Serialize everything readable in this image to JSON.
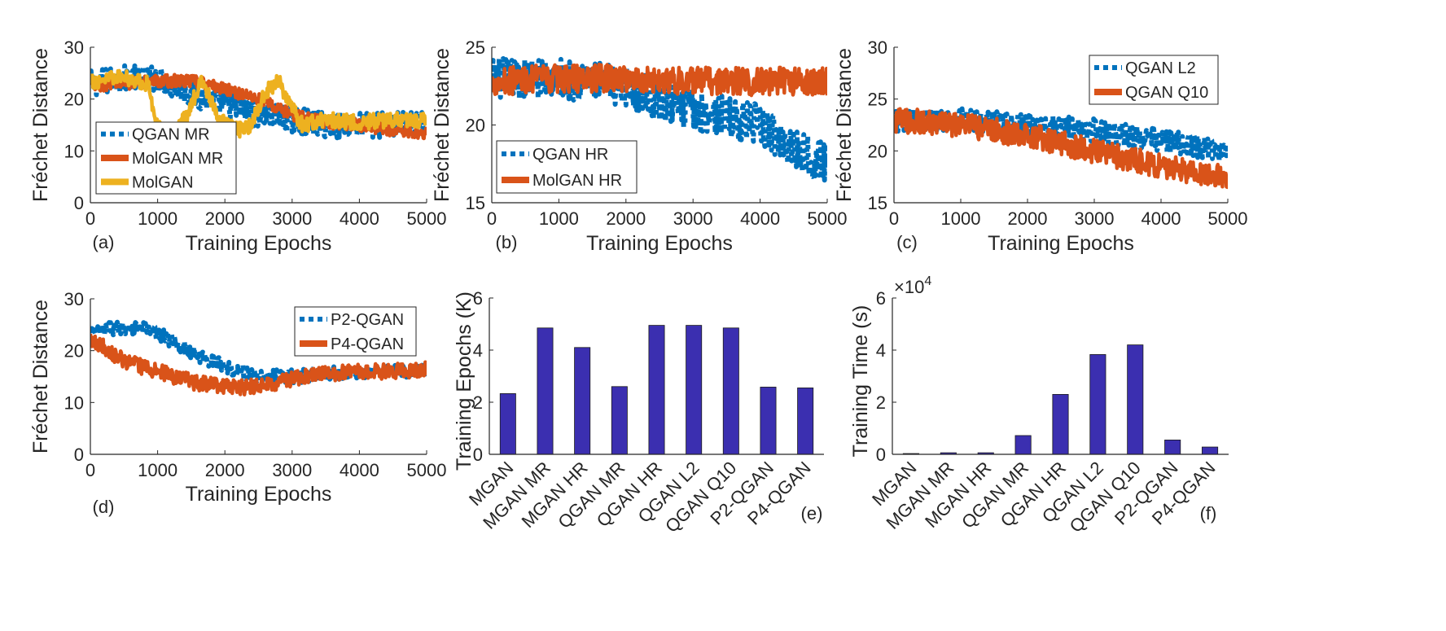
{
  "chart_data": [
    {
      "panel": "(a)",
      "type": "line",
      "xlabel": "Training Epochs",
      "ylabel": "Fréchet Distance",
      "xlim": [
        0,
        5000
      ],
      "ylim": [
        0,
        30
      ],
      "xticks": [
        0,
        1000,
        2000,
        3000,
        4000,
        5000
      ],
      "yticks": [
        0,
        10,
        20,
        30
      ],
      "legend": "middle-left",
      "series": [
        {
          "name": "QGAN MR",
          "color": "#0072BD",
          "style": "dotted",
          "x": [
            0,
            500,
            1000,
            1500,
            2000,
            2500,
            3000,
            3500,
            4000,
            4500,
            5000
          ],
          "y": [
            23,
            24,
            24,
            21,
            19,
            17,
            16,
            15,
            15,
            15,
            15
          ],
          "noise": 2.5
        },
        {
          "name": "MolGAN MR",
          "color": "#D95319",
          "style": "solid",
          "x": [
            0,
            500,
            1000,
            1500,
            2000,
            2500,
            3000,
            3500,
            4000,
            4500,
            5000
          ],
          "y": [
            22.5,
            23,
            23.5,
            23.5,
            22,
            20,
            17,
            15.5,
            15,
            14,
            13.5
          ],
          "noise": 1.2
        },
        {
          "name": "MolGAN",
          "color": "#EDB120",
          "style": "solid",
          "x": [
            0,
            300,
            600,
            850,
            1000,
            1200,
            1450,
            1650,
            1900,
            2150,
            2350,
            2600,
            2800,
            2950,
            3150,
            3500,
            4000,
            4500,
            5000
          ],
          "y": [
            23,
            24.5,
            24,
            23,
            15,
            13,
            17,
            24,
            16,
            14,
            14.5,
            21,
            24,
            19,
            15,
            16,
            15.5,
            16,
            16
          ],
          "noise": 1.5
        }
      ]
    },
    {
      "panel": "(b)",
      "type": "line",
      "xlabel": "Training Epochs",
      "ylabel": "Fréchet Distance",
      "xlim": [
        0,
        5000
      ],
      "ylim": [
        15,
        25
      ],
      "xticks": [
        0,
        1000,
        2000,
        3000,
        4000,
        5000
      ],
      "yticks": [
        15,
        20,
        25
      ],
      "legend": "bottom-left",
      "series": [
        {
          "name": "QGAN HR",
          "color": "#0072BD",
          "style": "dotted",
          "x": [
            0,
            1000,
            2000,
            2500,
            3000,
            3500,
            4000,
            4500,
            5000
          ],
          "y": [
            23,
            23,
            22.5,
            21.5,
            21,
            20.5,
            20,
            18.5,
            17.5
          ],
          "noise": 1.3
        },
        {
          "name": "MolGAN HR",
          "color": "#D95319",
          "style": "solid",
          "x": [
            0,
            1000,
            2000,
            3000,
            4000,
            5000
          ],
          "y": [
            22.8,
            23,
            23,
            22.8,
            22.8,
            22.8
          ],
          "noise": 0.9
        }
      ]
    },
    {
      "panel": "(c)",
      "type": "line",
      "xlabel": "Training Epochs",
      "ylabel": "Fréchet Distance",
      "xlim": [
        0,
        5000
      ],
      "ylim": [
        15,
        30
      ],
      "xticks": [
        0,
        1000,
        2000,
        3000,
        4000,
        5000
      ],
      "yticks": [
        15,
        20,
        25,
        30
      ],
      "legend": "top-right",
      "series": [
        {
          "name": "QGAN L2",
          "color": "#0072BD",
          "style": "dotted",
          "x": [
            0,
            1000,
            2000,
            3000,
            4000,
            5000
          ],
          "y": [
            23,
            23,
            22.5,
            22,
            21,
            20
          ],
          "noise": 1.1
        },
        {
          "name": "QGAN Q10",
          "color": "#D95319",
          "style": "solid",
          "x": [
            0,
            1000,
            2000,
            3000,
            4000,
            5000
          ],
          "y": [
            23,
            22.5,
            21.5,
            20,
            18.5,
            17.5
          ],
          "noise": 1.2
        }
      ]
    },
    {
      "panel": "(d)",
      "type": "line",
      "xlabel": "Training Epochs",
      "ylabel": "Fréchet Distance",
      "xlim": [
        0,
        5000
      ],
      "ylim": [
        0,
        30
      ],
      "xticks": [
        0,
        1000,
        2000,
        3000,
        4000,
        5000
      ],
      "yticks": [
        0,
        10,
        20,
        30
      ],
      "legend": "top-right",
      "series": [
        {
          "name": "P2-QGAN",
          "color": "#0072BD",
          "style": "dotted",
          "x": [
            0,
            400,
            800,
            1200,
            1600,
            2000,
            2500,
            3000,
            3500,
            4000,
            4500,
            5000
          ],
          "y": [
            23.5,
            24.5,
            24.5,
            22,
            19,
            17,
            15,
            15,
            15.5,
            16,
            16,
            16
          ],
          "noise": 1.3
        },
        {
          "name": "P4-QGAN",
          "color": "#D95319",
          "style": "solid",
          "x": [
            0,
            500,
            1000,
            1500,
            2000,
            2500,
            3000,
            3500,
            4000,
            4500,
            5000
          ],
          "y": [
            22.5,
            18,
            16,
            14,
            13,
            13,
            14.5,
            15.5,
            16,
            16,
            16.5
          ],
          "noise": 1.5
        }
      ]
    },
    {
      "panel": "(e)",
      "type": "bar",
      "ylabel": "Training Epochs (K)",
      "ylim": [
        0,
        6
      ],
      "yticks": [
        0,
        2,
        4,
        6
      ],
      "bar_color": "#3B2FB0",
      "categories": [
        "MGAN",
        "MGAN MR",
        "MGAN HR",
        "QGAN MR",
        "QGAN HR",
        "QGAN L2",
        "QGAN Q10",
        "P2-QGAN",
        "P4-QGAN"
      ],
      "values": [
        2.33,
        4.85,
        4.1,
        2.6,
        4.95,
        4.95,
        4.85,
        2.58,
        2.55
      ]
    },
    {
      "panel": "(f)",
      "type": "bar",
      "ylabel": "Training Time (s)",
      "multiplier": "×10",
      "multiplier_exp": "4",
      "ylim": [
        0,
        6
      ],
      "yticks": [
        0,
        2,
        4,
        6
      ],
      "bar_color": "#3B2FB0",
      "categories": [
        "MGAN",
        "MGAN MR",
        "MGAN HR",
        "QGAN MR",
        "QGAN HR",
        "QGAN L2",
        "QGAN Q10",
        "P2-QGAN",
        "P4-QGAN"
      ],
      "values": [
        0.03,
        0.06,
        0.06,
        0.72,
        2.3,
        3.83,
        4.2,
        0.55,
        0.28
      ]
    }
  ]
}
